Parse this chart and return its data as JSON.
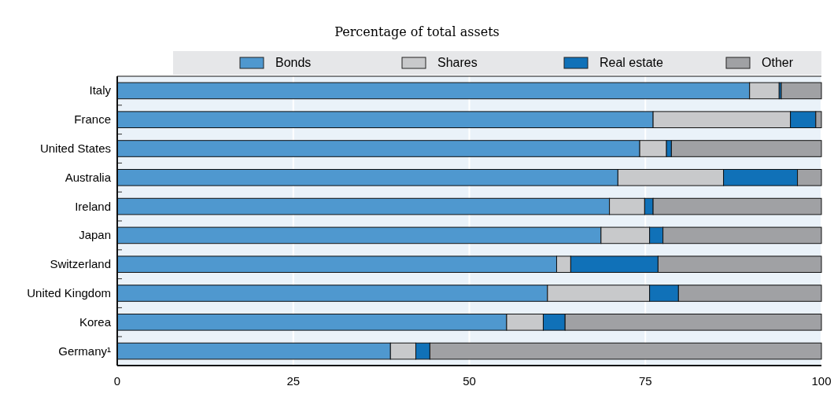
{
  "chart_data": {
    "type": "bar",
    "orientation": "horizontal",
    "stacked": true,
    "subtitle": "Percentage of total assets",
    "categories": [
      "Italy",
      "France",
      "United States",
      "Australia",
      "Ireland",
      "Japan",
      "Switzerland",
      "United Kingdom",
      "Korea",
      "Germany¹"
    ],
    "series": [
      {
        "name": "Bonds",
        "color": "#4f98cf",
        "values": [
          89.8,
          76.1,
          74.2,
          71.1,
          69.9,
          68.7,
          62.4,
          61.1,
          55.3,
          38.8
        ]
      },
      {
        "name": "Shares",
        "color": "#c8c9cb",
        "values": [
          4.2,
          19.5,
          3.8,
          15.0,
          5.0,
          6.9,
          2.0,
          14.5,
          5.2,
          3.6
        ]
      },
      {
        "name": "Real estate",
        "color": "#1071b8",
        "values": [
          0.3,
          3.6,
          0.7,
          10.5,
          1.2,
          1.9,
          12.4,
          4.1,
          3.1,
          2.0
        ]
      },
      {
        "name": "Other",
        "color": "#a0a1a4",
        "values": [
          5.7,
          0.8,
          21.3,
          3.4,
          23.9,
          22.5,
          23.2,
          20.3,
          36.4,
          55.6
        ]
      }
    ],
    "xlim": [
      0,
      100
    ],
    "xticks": [
      0,
      25,
      50,
      75,
      100
    ],
    "grid": "x",
    "legend": "top"
  }
}
